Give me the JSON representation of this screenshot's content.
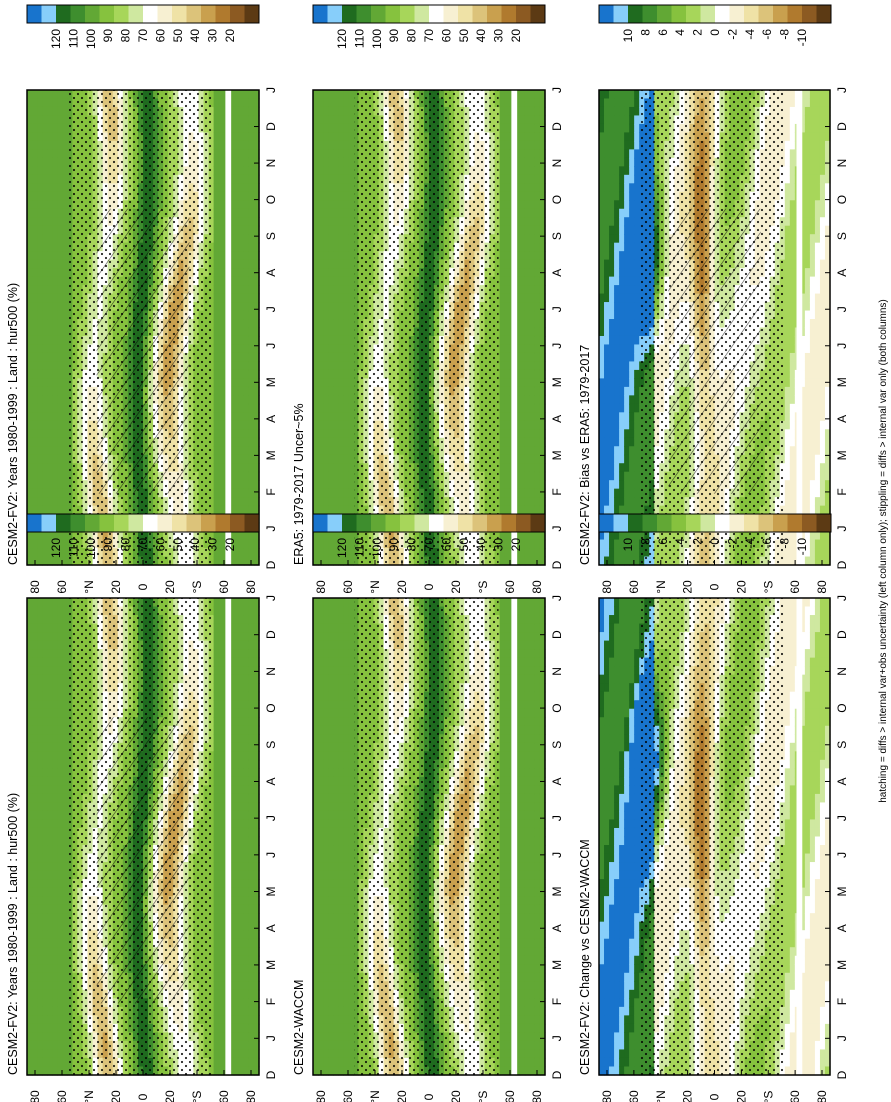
{
  "figure": {
    "footer": "hatching = diffs > internal var+obs uncertainty (left column only); stippling = diffs > internal var only (both columns)"
  },
  "chart_data": [
    {
      "type": "heatmap",
      "title": "CESM2-FV2: Years 1980-1999 : Land : hur500 (%)",
      "x": [
        "D",
        "J",
        "F",
        "M",
        "A",
        "M",
        "J",
        "J",
        "A",
        "S",
        "O",
        "N",
        "D",
        "J"
      ],
      "y_ticks": [
        "80",
        "60",
        "°N",
        "20",
        "0",
        "20",
        "°S",
        "60",
        "80"
      ],
      "colorbar": {
        "labels": [
          "120",
          "110",
          "100",
          "90",
          "80",
          "70",
          "60",
          "50",
          "40",
          "30",
          "20"
        ]
      },
      "palette": "abs"
    },
    {
      "type": "heatmap",
      "title": "CESM2-FV2: Years 1980-1999 : Land : hur500 (%)",
      "x": [
        "D",
        "J",
        "F",
        "M",
        "A",
        "M",
        "J",
        "J",
        "A",
        "S",
        "O",
        "N",
        "D",
        "J"
      ],
      "y_ticks": [
        "80",
        "60",
        "°N",
        "20",
        "0",
        "20",
        "°S",
        "60",
        "80"
      ],
      "colorbar": {
        "labels": [
          "120",
          "110",
          "100",
          "90",
          "80",
          "70",
          "60",
          "50",
          "40",
          "30",
          "20"
        ]
      },
      "palette": "abs"
    },
    {
      "type": "heatmap",
      "title": "ERA5: 1979-2017 Uncer~5%",
      "x": [
        "D",
        "J",
        "F",
        "M",
        "A",
        "M",
        "J",
        "J",
        "A",
        "S",
        "O",
        "N",
        "D",
        "J"
      ],
      "y_ticks": [
        "80",
        "60",
        "°N",
        "20",
        "0",
        "20",
        "°S",
        "60",
        "80"
      ],
      "colorbar": {
        "labels": [
          "120",
          "110",
          "100",
          "90",
          "80",
          "70",
          "60",
          "50",
          "40",
          "30",
          "20"
        ]
      },
      "palette": "abs"
    },
    {
      "type": "heatmap",
      "title": "CESM2-WACCM",
      "x": [
        "D",
        "J",
        "F",
        "M",
        "A",
        "M",
        "J",
        "J",
        "A",
        "S",
        "O",
        "N",
        "D",
        "J"
      ],
      "y_ticks": [
        "80",
        "60",
        "°N",
        "20",
        "0",
        "20",
        "°S",
        "60",
        "80"
      ],
      "colorbar": {
        "labels": [
          "120",
          "110",
          "100",
          "90",
          "80",
          "70",
          "60",
          "50",
          "40",
          "30",
          "20"
        ]
      },
      "palette": "abs"
    },
    {
      "type": "heatmap",
      "title": "CESM2-FV2: Bias vs ERA5: 1979-2017",
      "x": [
        "D",
        "J",
        "F",
        "M",
        "A",
        "M",
        "J",
        "J",
        "A",
        "S",
        "O",
        "N",
        "D",
        "J"
      ],
      "y_ticks": [
        "80",
        "60",
        "°N",
        "20",
        "0",
        "20",
        "°S",
        "60",
        "80"
      ],
      "colorbar": {
        "labels": [
          "10",
          "8",
          "6",
          "4",
          "2",
          "0",
          "-2",
          "-4",
          "-6",
          "-8",
          "-10"
        ]
      },
      "palette": "diff"
    },
    {
      "type": "heatmap",
      "title": "CESM2-FV2: Change vs CESM2-WACCM",
      "x": [
        "D",
        "J",
        "F",
        "M",
        "A",
        "M",
        "J",
        "J",
        "A",
        "S",
        "O",
        "N",
        "D",
        "J"
      ],
      "y_ticks": [
        "80",
        "60",
        "°N",
        "20",
        "0",
        "20",
        "°S",
        "60",
        "80"
      ],
      "colorbar": {
        "labels": [
          "10",
          "8",
          "6",
          "4",
          "2",
          "0",
          "-2",
          "-4",
          "-6",
          "-8",
          "-10"
        ]
      },
      "palette": "diff"
    }
  ],
  "colors": {
    "abs": [
      "#1874cd",
      "#87cefa",
      "#1f6b1f",
      "#3e8e2e",
      "#62a835",
      "#86c23e",
      "#a7d65a",
      "#cfe8a0",
      "#ffffff",
      "#f7f0d2",
      "#efe2a6",
      "#dcc37a",
      "#c9a04e",
      "#b07a2e",
      "#8c5a22",
      "#5c3a14"
    ],
    "diff": [
      "#1874cd",
      "#87cefa",
      "#1f6b1f",
      "#3e8e2e",
      "#62a835",
      "#86c23e",
      "#a7d65a",
      "#cfe8a0",
      "#ffffff",
      "#f7f0d2",
      "#efe2a6",
      "#dcc37a",
      "#c9a04e",
      "#b07a2e",
      "#8c5a22",
      "#5c3a14"
    ]
  }
}
